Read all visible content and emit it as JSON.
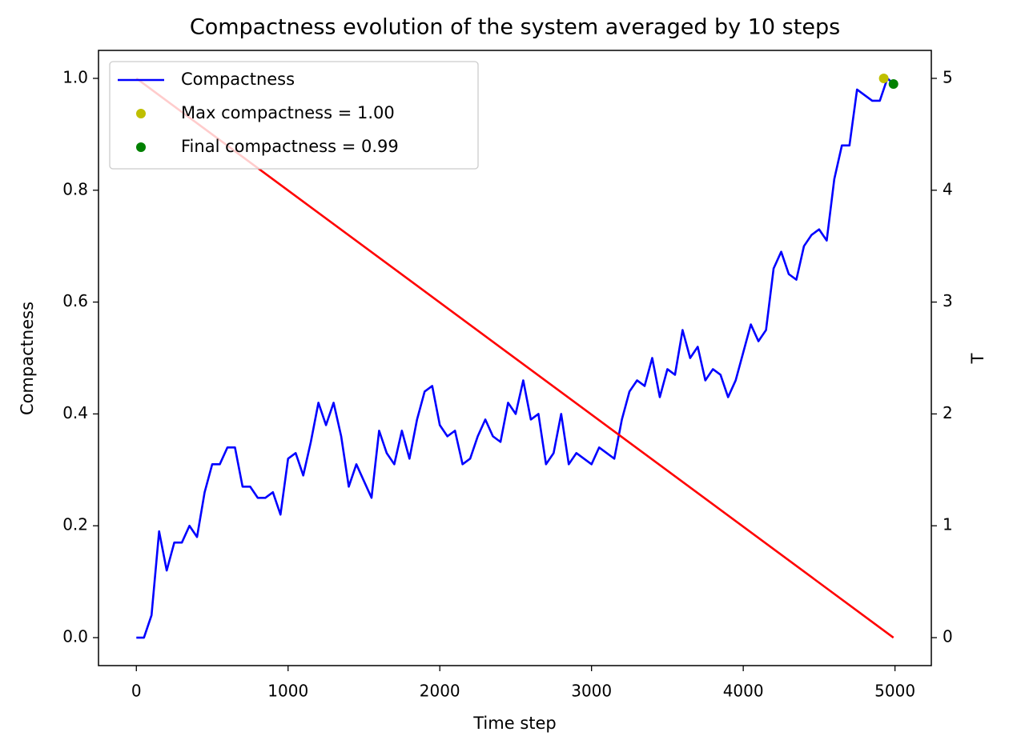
{
  "chart_data": {
    "type": "line",
    "title": "Compactness evolution of the system averaged by 10 steps",
    "xlabel": "Time step",
    "ylabel": "Compactness",
    "y2label": "T",
    "xlim": [
      -249.5,
      5239.5
    ],
    "xticks": [
      0,
      1000,
      2000,
      3000,
      4000,
      5000
    ],
    "ylim": [
      -0.05,
      1.05
    ],
    "yticks": [
      {
        "value": 0,
        "label": "0.0"
      },
      0.2,
      0.4,
      0.6,
      0.8,
      {
        "value": 1,
        "label": "1.0"
      }
    ],
    "y2lim": [
      -0.25,
      5.25
    ],
    "y2ticks": [
      0,
      1,
      2,
      3,
      4,
      5
    ],
    "y_color": "#0000ff",
    "y2_color": "#ff0000",
    "legend": "upper left",
    "grid": false,
    "series": [
      {
        "name": "Compactness",
        "color": "#0000ff",
        "style": "line",
        "x": [
          0,
          50,
          100,
          150,
          200,
          250,
          300,
          350,
          400,
          450,
          500,
          550,
          600,
          650,
          700,
          750,
          800,
          850,
          900,
          950,
          1000,
          1050,
          1100,
          1150,
          1200,
          1250,
          1300,
          1350,
          1400,
          1450,
          1500,
          1550,
          1600,
          1650,
          1700,
          1750,
          1800,
          1850,
          1900,
          1950,
          2000,
          2050,
          2100,
          2150,
          2200,
          2250,
          2300,
          2350,
          2400,
          2450,
          2500,
          2550,
          2600,
          2650,
          2700,
          2750,
          2800,
          2850,
          2900,
          2950,
          3000,
          3050,
          3100,
          3150,
          3200,
          3250,
          3300,
          3350,
          3400,
          3450,
          3500,
          3550,
          3600,
          3650,
          3700,
          3750,
          3800,
          3850,
          3900,
          3950,
          4000,
          4050,
          4100,
          4150,
          4200,
          4250,
          4300,
          4350,
          4400,
          4450,
          4500,
          4550,
          4600,
          4650,
          4700,
          4750,
          4800,
          4850,
          4900,
          4950,
          4990
        ],
        "values": [
          0,
          0,
          0.04,
          0.19,
          0.12,
          0.17,
          0.17,
          0.2,
          0.18,
          0.26,
          0.31,
          0.31,
          0.34,
          0.34,
          0.27,
          0.27,
          0.25,
          0.25,
          0.26,
          0.22,
          0.32,
          0.33,
          0.29,
          0.35,
          0.42,
          0.38,
          0.42,
          0.36,
          0.27,
          0.31,
          0.28,
          0.25,
          0.37,
          0.33,
          0.31,
          0.37,
          0.32,
          0.39,
          0.44,
          0.45,
          0.38,
          0.36,
          0.37,
          0.31,
          0.32,
          0.36,
          0.39,
          0.36,
          0.35,
          0.42,
          0.4,
          0.46,
          0.39,
          0.4,
          0.31,
          0.33,
          0.4,
          0.31,
          0.33,
          0.32,
          0.31,
          0.34,
          0.33,
          0.32,
          0.39,
          0.44,
          0.46,
          0.45,
          0.5,
          0.43,
          0.48,
          0.47,
          0.55,
          0.5,
          0.52,
          0.46,
          0.48,
          0.47,
          0.43,
          0.46,
          0.51,
          0.56,
          0.53,
          0.55,
          0.66,
          0.69,
          0.65,
          0.64,
          0.7,
          0.72,
          0.73,
          0.71,
          0.82,
          0.88,
          0.88,
          0.98,
          0.97,
          0.96,
          0.96,
          1,
          0.99
        ]
      },
      {
        "name": "Max compactness = 1.00",
        "color": "#bfbf00",
        "style": "marker",
        "x": [
          4926
        ],
        "values": [
          1.0
        ]
      },
      {
        "name": "Final compactness = 0.99",
        "color": "#008000",
        "style": "marker",
        "x": [
          4990
        ],
        "values": [
          0.99
        ]
      },
      {
        "color": "#ff0000",
        "style": "line",
        "axis": "y2",
        "x": [
          0,
          4990
        ],
        "values": [
          5,
          0
        ]
      }
    ]
  }
}
